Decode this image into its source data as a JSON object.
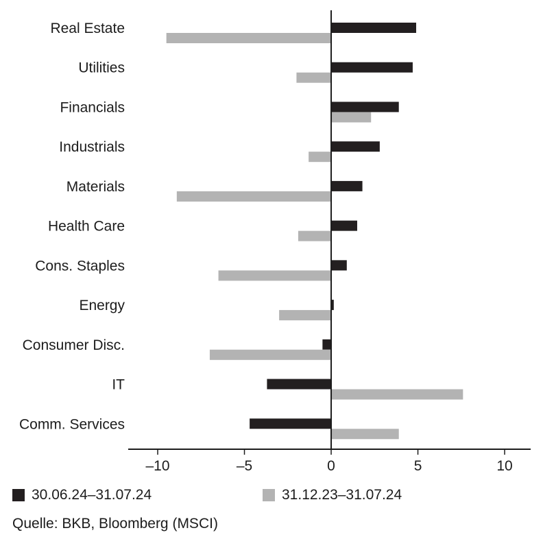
{
  "chart_data": {
    "type": "bar",
    "orientation": "horizontal",
    "categories": [
      "Real Estate",
      "Utilities",
      "Financials",
      "Industrials",
      "Materials",
      "Health Care",
      "Cons. Staples",
      "Energy",
      "Consumer Disc.",
      "IT",
      "Comm. Services"
    ],
    "series": [
      {
        "name": "30.06.24–31.07.24",
        "color": "#231f20",
        "values": [
          4.9,
          4.7,
          3.9,
          2.8,
          1.8,
          1.5,
          0.9,
          0.15,
          -0.5,
          -3.7,
          -4.7
        ]
      },
      {
        "name": "31.12.23–31.07.24",
        "color": "#b3b3b3",
        "values": [
          -9.5,
          -2.0,
          2.3,
          -1.3,
          -8.9,
          -1.9,
          -6.5,
          -3.0,
          -7.0,
          7.6,
          3.9
        ]
      }
    ],
    "xlim": [
      -11.7,
      11.5
    ],
    "xticks": [
      -10,
      -5,
      0,
      5,
      10
    ],
    "xtick_labels": [
      "–10",
      "–5",
      "0",
      "5",
      "10"
    ],
    "grid": false,
    "legend_placement": "bottom"
  },
  "legend": {
    "item1": "30.06.24–31.07.24",
    "item2": "31.12.23–31.07.24"
  },
  "source": "Quelle: BKB, Bloomberg (MSCI)"
}
